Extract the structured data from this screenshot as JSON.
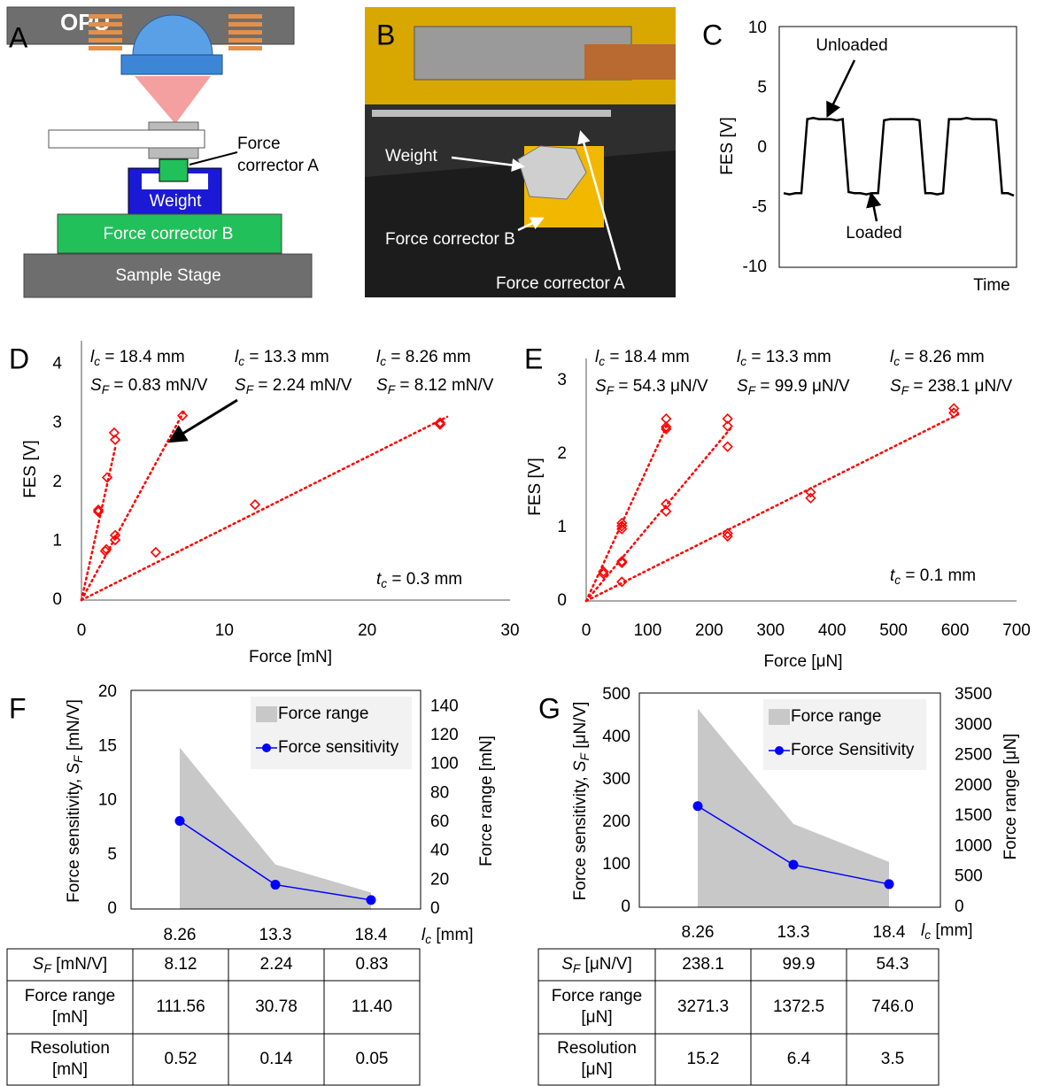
{
  "panel_labels": [
    "A",
    "B",
    "C",
    "D",
    "E",
    "F",
    "G"
  ],
  "diagram_a": {
    "opu": "OPU",
    "force_corrector_a": [
      "Force",
      "corrector A"
    ],
    "weight": "Weight",
    "force_corrector_b": "Force corrector B",
    "sample_stage": "Sample Stage"
  },
  "photo_b": {
    "weight": "Weight",
    "force_corrector_b": "Force corrector B",
    "force_corrector_a": "Force corrector A"
  },
  "chart_data": [
    {
      "type": "line",
      "x_label": "Time",
      "y_label": "FES [V]",
      "ylim": [
        -10,
        10
      ],
      "yticks": [
        -10,
        -5,
        0,
        5,
        10
      ],
      "frame": true,
      "categories": [
        null,
        null,
        null,
        null,
        null,
        null,
        null,
        null,
        null,
        null,
        null,
        null,
        null,
        null,
        null,
        null,
        null,
        null,
        null,
        null,
        null,
        null,
        null,
        null,
        null,
        null,
        null,
        null,
        null,
        null,
        null,
        null,
        null,
        null,
        null,
        null,
        null,
        null,
        null,
        null
      ],
      "series": [
        {
          "color": "#000000",
          "values": [
            -3.8,
            -3.9,
            -3.8,
            -3.8,
            2.4,
            2.5,
            2.4,
            2.4,
            2.4,
            2.3,
            2.4,
            -3.7,
            -3.8,
            -3.8,
            -3.9,
            -3.8,
            -3.8,
            2.3,
            2.4,
            2.4,
            2.4,
            2.4,
            2.4,
            2.3,
            -3.8,
            -3.8,
            -3.9,
            -3.8,
            2.4,
            2.4,
            2.4,
            2.5,
            2.4,
            2.4,
            2.4,
            2.4,
            2.3,
            -3.8,
            -3.8,
            -4.0
          ]
        }
      ],
      "annotations": [
        "Unloaded",
        "Loaded"
      ]
    },
    {
      "type": "scatter",
      "x_label": "Force [mN]",
      "y_label": "FES [V]",
      "xlim": [
        0,
        30
      ],
      "xticks": [
        0,
        10,
        20,
        30
      ],
      "ylim": [
        0,
        4.4
      ],
      "yticks": [
        0,
        1,
        2,
        3,
        4
      ],
      "frame": false,
      "trendline": true,
      "series": [
        {
          "color": "#ff0000",
          "x": [
            1.18,
            1.18,
            1.74,
            1.8,
            2.29,
            2.36
          ],
          "values": [
            1.53,
            1.5,
            0.86,
            2.08,
            2.84,
            2.72
          ]
        },
        {
          "color": "#ff0000",
          "x": [
            1.67,
            2.36,
            2.36,
            7.07
          ],
          "values": [
            0.83,
            1.02,
            1.1,
            3.13
          ]
        },
        {
          "color": "#ff0000",
          "x": [
            5.2,
            12.15,
            25.1,
            25.1
          ],
          "values": [
            0.81,
            1.62,
            3.01,
            2.98
          ]
        }
      ],
      "annotations": [
        {
          "var": "l",
          "sub": "c",
          "rest": " = 18.4 mm"
        },
        {
          "var": "S",
          "sub": "F",
          "rest": " = 0.83 mN/V"
        },
        {
          "var": "l",
          "sub": "c",
          "rest": " = 13.3 mm"
        },
        {
          "var": "S",
          "sub": "F",
          "rest": " = 2.24 mN/V"
        },
        {
          "var": "l",
          "sub": "c",
          "rest": " = 8.26 mm"
        },
        {
          "var": "S",
          "sub": "F",
          "rest": " = 8.12 mN/V"
        },
        {
          "var": "t",
          "sub": "c",
          "rest": " = 0.3 mm"
        }
      ]
    },
    {
      "type": "scatter",
      "x_label": "Force [μN]",
      "y_label": "FES [V]",
      "xlim": [
        0,
        700
      ],
      "xticks": [
        0,
        100,
        200,
        300,
        400,
        500,
        600,
        700
      ],
      "ylim": [
        0,
        3.3
      ],
      "yticks": [
        0,
        1,
        2,
        3
      ],
      "frame": false,
      "trendline": true,
      "series": [
        {
          "color": "#ff0000",
          "x": [
            28,
            28,
            58,
            58,
            58,
            130,
            130,
            130
          ],
          "values": [
            0.4,
            0.37,
            1.06,
            1.02,
            0.98,
            2.48,
            2.37,
            2.34
          ]
        },
        {
          "color": "#ff0000",
          "x": [
            58,
            58,
            130,
            130,
            230,
            230,
            230
          ],
          "values": [
            0.54,
            0.52,
            1.32,
            1.22,
            2.48,
            2.38,
            2.1
          ]
        },
        {
          "color": "#ff0000",
          "x": [
            58,
            230,
            230,
            365,
            365,
            598,
            598
          ],
          "values": [
            0.26,
            0.92,
            0.88,
            1.48,
            1.4,
            2.62,
            2.56
          ]
        }
      ],
      "annotations": [
        {
          "var": "l",
          "sub": "c",
          "rest": " = 18.4 mm"
        },
        {
          "var": "S",
          "sub": "F",
          "rest": " = 54.3 μN/V"
        },
        {
          "var": "l",
          "sub": "c",
          "rest": " = 13.3 mm"
        },
        {
          "var": "S",
          "sub": "F",
          "rest": " = 99.9 μN/V"
        },
        {
          "var": "l",
          "sub": "c",
          "rest": " = 8.26 mm"
        },
        {
          "var": "S",
          "sub": "F",
          "rest": " = 238.1 μN/V"
        },
        {
          "var": "t",
          "sub": "c",
          "rest": " = 0.1 mm"
        }
      ]
    },
    {
      "type": "combo",
      "x_label": {
        "var": "l",
        "sub": "c",
        "rest": " [mm]"
      },
      "y_label": {
        "pre": "Force sensitivity, ",
        "var": "S",
        "sub": "F",
        "rest": "  [mN/V]"
      },
      "y2_label": "Force  range [mN]",
      "categories": [
        "8.26",
        "13.3",
        "18.4"
      ],
      "ylim": [
        0,
        20
      ],
      "yticks": [
        0,
        5,
        10,
        15,
        20
      ],
      "y2lim": [
        0,
        150
      ],
      "y2ticks": [
        0,
        20,
        40,
        60,
        80,
        100,
        120,
        140
      ],
      "frame": true,
      "legend": "upper right",
      "series": [
        {
          "name": "Force range",
          "style": "area",
          "axis": "y2",
          "color": "#c8c8c8",
          "values": [
            111.56,
            30.78,
            11.4
          ]
        },
        {
          "name": "Force sensitivity",
          "style": "line",
          "color": "#0000ff",
          "values": [
            8.12,
            2.24,
            0.83
          ]
        }
      ]
    },
    {
      "type": "combo",
      "x_label": {
        "var": "l",
        "sub": "c",
        "rest": " [mm]"
      },
      "y_label": {
        "pre": "Force sensitivity, ",
        "var": "S",
        "sub": "F",
        "rest": " [μN/V]"
      },
      "y2_label": "Force range [μN]",
      "categories": [
        "8.26",
        "13.3",
        "18.4"
      ],
      "ylim": [
        0,
        500
      ],
      "yticks": [
        0,
        100,
        200,
        300,
        400,
        500
      ],
      "y2lim": [
        0,
        3500
      ],
      "y2ticks": [
        0,
        500,
        1000,
        1500,
        2000,
        2500,
        3000,
        3500
      ],
      "frame": true,
      "legend": "upper right",
      "series": [
        {
          "name": "Force range",
          "style": "area",
          "axis": "y2",
          "color": "#c8c8c8",
          "values": [
            3271.3,
            1372.5,
            746.0
          ]
        },
        {
          "name": "Force Sensitivity",
          "style": "line",
          "color": "#0000ff",
          "values": [
            238.1,
            99.9,
            54.3
          ]
        }
      ]
    }
  ],
  "tables": [
    {
      "rows": [
        [
          {
            "var": "S",
            "sub": "F",
            "rest": " [mN/V]"
          },
          "8.12",
          "2.24",
          "0.83"
        ],
        [
          [
            "Force range",
            "[mN]"
          ],
          "111.56",
          "30.78",
          "11.40"
        ],
        [
          [
            "Resolution",
            "[mN]"
          ],
          "0.52",
          "0.14",
          "0.05"
        ]
      ]
    },
    {
      "rows": [
        [
          {
            "var": "S",
            "sub": "F",
            "rest": " [μN/V]"
          },
          "238.1",
          "99.9",
          "54.3"
        ],
        [
          [
            "Force range",
            "[μN]"
          ],
          "3271.3",
          "1372.5",
          "746.0"
        ],
        [
          [
            "Resolution",
            "[μN]"
          ],
          "15.2",
          "6.4",
          "3.5"
        ]
      ]
    }
  ]
}
